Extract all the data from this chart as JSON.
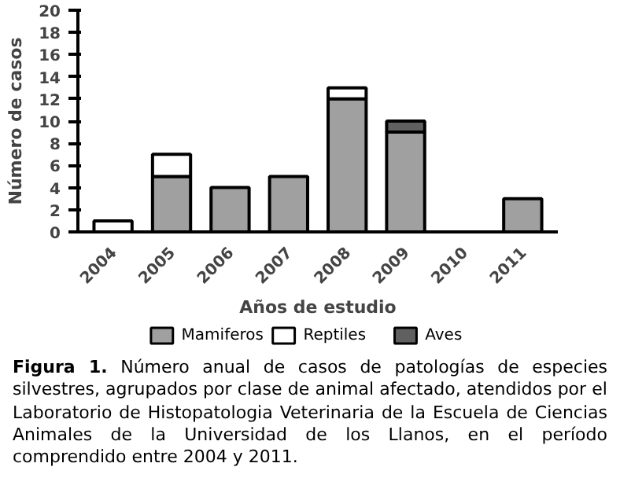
{
  "chart_data": {
    "type": "bar",
    "stacked": true,
    "xlabel": "Años de estudio",
    "ylabel": "Número de casos",
    "categories": [
      "2004",
      "2005",
      "2006",
      "2007",
      "2008",
      "2009",
      "2010",
      "2011"
    ],
    "series": [
      {
        "name": "Mamiferos",
        "color": "#a0a0a0",
        "values": [
          0,
          5,
          4,
          5,
          12,
          9,
          0,
          3
        ]
      },
      {
        "name": "Reptiles",
        "color": "#ffffff",
        "values": [
          1,
          2,
          0,
          0,
          1,
          0,
          0,
          0
        ]
      },
      {
        "name": "Aves",
        "color": "#606060",
        "values": [
          0,
          0,
          0,
          0,
          0,
          1,
          0,
          0
        ]
      }
    ],
    "ylim": [
      0,
      20
    ],
    "yticks": [
      0,
      2,
      4,
      6,
      8,
      10,
      12,
      14,
      16,
      18,
      20
    ],
    "grid": false,
    "legend": "bottom",
    "annotations": [
      "Figura 1. Número anual de casos de patologías de especies silvestres, agrupados por clase de animal afectado, atendidos por el Laboratorio de Histopatologia Veterinaria de la Escuela de Ciencias Animales de la Universidad de los Llanos, en el período comprendido entre 2004 y 2011."
    ]
  }
}
